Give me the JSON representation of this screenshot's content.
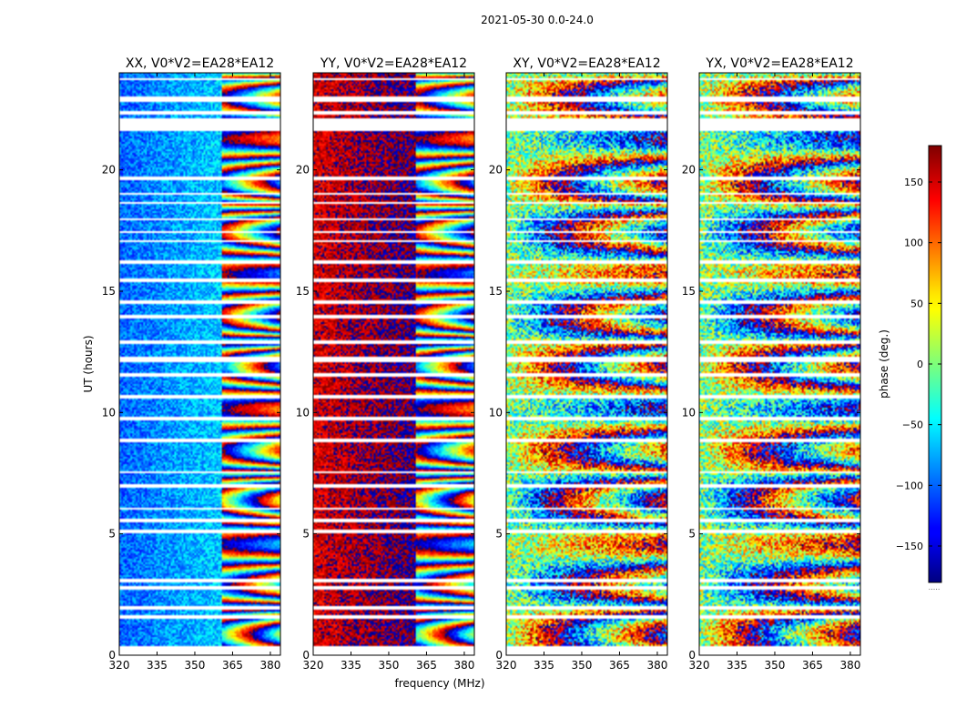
{
  "chart_data": {
    "type": "heatmap",
    "suptitle": "2021-05-30 0.0-24.0",
    "xlabel": "frequency (MHz)",
    "ylabel": "UT (hours)",
    "xlim": [
      320,
      384
    ],
    "ylim": [
      0,
      24
    ],
    "xticks": [
      320,
      335,
      350,
      365,
      380
    ],
    "yticks": [
      0,
      5,
      10,
      15,
      20
    ],
    "panels": [
      {
        "title": "XX, V0*V2=EA28*EA12",
        "polarization": "XX",
        "base_phase_deg": -100
      },
      {
        "title": "YY, V0*V2=EA28*EA12",
        "polarization": "YY",
        "base_phase_deg": 150
      },
      {
        "title": "XY, V0*V2=EA28*EA12",
        "polarization": "XY",
        "base_phase_deg": null
      },
      {
        "title": "YX, V0*V2=EA28*EA12",
        "polarization": "YX",
        "base_phase_deg": null
      }
    ],
    "colorbar": {
      "label": "phase (deg.)",
      "colormap": "jet",
      "range": [
        -180,
        180
      ],
      "ticks": [
        150,
        100,
        50,
        0,
        -50,
        -100,
        -150
      ],
      "tick_labels": [
        "150",
        "100",
        "50",
        "0",
        "−50",
        "−100",
        "−150"
      ],
      "footnote": "....."
    },
    "flagged_ut_hours": [
      [
        0.0,
        0.4
      ],
      [
        1.5,
        1.65
      ],
      [
        1.9,
        2.0
      ],
      [
        2.7,
        2.85
      ],
      [
        3.0,
        3.15
      ],
      [
        5.05,
        5.2
      ],
      [
        5.5,
        5.6
      ],
      [
        6.0,
        6.1
      ],
      [
        6.9,
        7.05
      ],
      [
        7.5,
        7.6
      ],
      [
        8.0,
        8.05
      ],
      [
        8.8,
        8.9
      ],
      [
        9.7,
        9.8
      ],
      [
        10.6,
        10.7
      ],
      [
        11.5,
        11.6
      ],
      [
        12.1,
        12.3
      ],
      [
        12.8,
        13.0
      ],
      [
        13.9,
        14.0
      ],
      [
        14.5,
        14.6
      ],
      [
        15.4,
        15.5
      ],
      [
        16.1,
        16.25
      ],
      [
        17.0,
        17.1
      ],
      [
        17.4,
        17.5
      ],
      [
        17.9,
        18.0
      ],
      [
        18.6,
        18.7
      ],
      [
        19.0,
        19.05
      ],
      [
        19.6,
        19.7
      ],
      [
        20.3,
        20.35
      ],
      [
        21.6,
        22.1
      ],
      [
        22.3,
        22.4
      ],
      [
        22.8,
        23.0
      ],
      [
        23.3,
        23.35
      ],
      [
        23.7,
        23.8
      ]
    ]
  }
}
